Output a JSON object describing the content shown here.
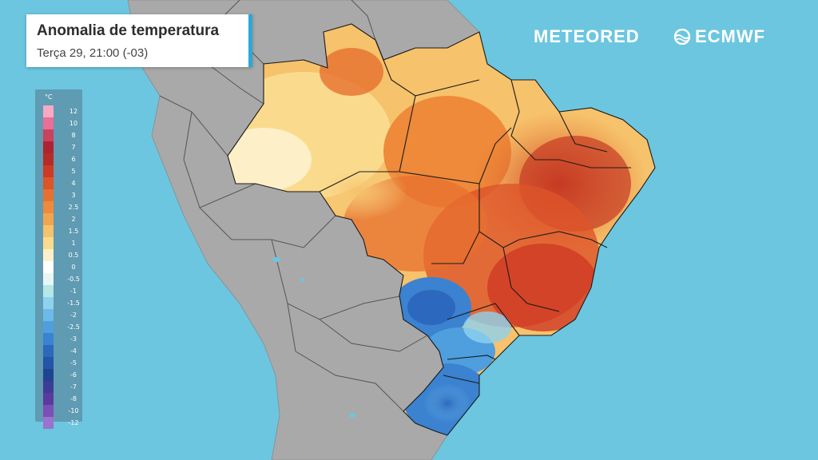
{
  "header": {
    "title": "Anomalia de temperatura",
    "subtitle": "Terça 29, 21:00 (-03)"
  },
  "brands": {
    "meteored": "METEORED",
    "ecmwf": "ECMWF"
  },
  "legend": {
    "unit": "°C",
    "levels": [
      {
        "label": "12",
        "color": "#f7a9c4"
      },
      {
        "label": "10",
        "color": "#e96e98"
      },
      {
        "label": "8",
        "color": "#c9435e"
      },
      {
        "label": "7",
        "color": "#ad2430"
      },
      {
        "label": "6",
        "color": "#b72b26"
      },
      {
        "label": "5",
        "color": "#cf3a25"
      },
      {
        "label": "4",
        "color": "#dd5429"
      },
      {
        "label": "3",
        "color": "#e7702f"
      },
      {
        "label": "2.5",
        "color": "#ee8a3a"
      },
      {
        "label": "2",
        "color": "#f2a451"
      },
      {
        "label": "1.5",
        "color": "#f6c26b"
      },
      {
        "label": "1",
        "color": "#fadb8e"
      },
      {
        "label": "0.5",
        "color": "#fdf0c8"
      },
      {
        "label": "0",
        "color": "#ffffff"
      },
      {
        "label": "-0.5",
        "color": "#e9f6f6"
      },
      {
        "label": "-1",
        "color": "#b3e7e8"
      },
      {
        "label": "-1.5",
        "color": "#8ed2ef"
      },
      {
        "label": "-2",
        "color": "#6bbbe8"
      },
      {
        "label": "-2.5",
        "color": "#4f9ede"
      },
      {
        "label": "-3",
        "color": "#3b82d0"
      },
      {
        "label": "-4",
        "color": "#2c68bd"
      },
      {
        "label": "-5",
        "color": "#2455a8"
      },
      {
        "label": "-6",
        "color": "#1f4592"
      },
      {
        "label": "-7",
        "color": "#3d3d96"
      },
      {
        "label": "-8",
        "color": "#5a3a9e"
      },
      {
        "label": "-10",
        "color": "#7a4fb6"
      },
      {
        "label": "-12",
        "color": "#9a72cf"
      }
    ]
  },
  "colors": {
    "ocean": "#6cc6e0",
    "land_neighbors": "#a9a9a9",
    "accent": "#2ea7d8"
  }
}
